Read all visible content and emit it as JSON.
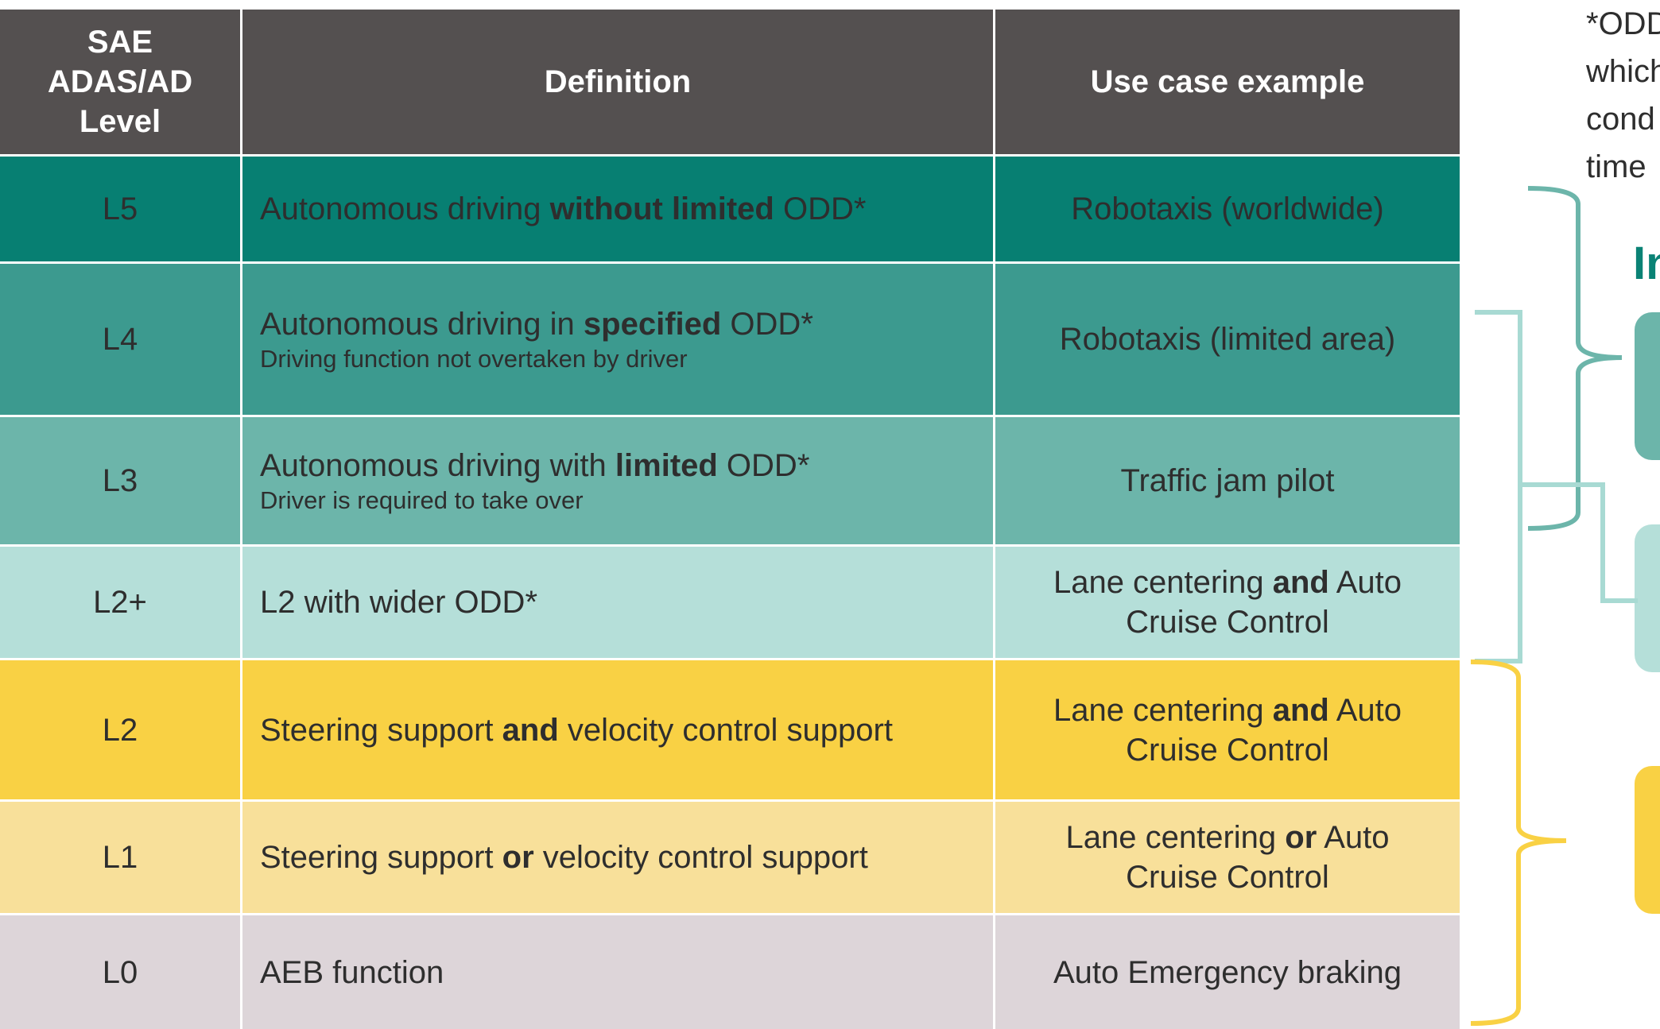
{
  "colors": {
    "header_bg": "#545050",
    "l5_bg": "#077f72",
    "l4_bg": "#3c9a8f",
    "l3_bg": "#6cb5aa",
    "l2plus_bg": "#b5dfd9",
    "l2_bg": "#f9d144",
    "l1_bg": "#f8e09a",
    "l0_bg": "#ddd5d9",
    "bracket_top": "#6cb5aa",
    "bracket_mid": "#a8dad3",
    "bracket_yellow": "#f9d144",
    "heading_accent": "#0a8275"
  },
  "header": {
    "level": [
      "SAE",
      "ADAS/AD",
      "Level"
    ],
    "definition": "Definition",
    "use_case": "Use case example"
  },
  "rows": [
    {
      "level": "L5",
      "def_parts": [
        "Autonomous driving ",
        "without limited",
        " ODD*"
      ],
      "def_sub": "",
      "use_parts": [
        "Robotaxis (worldwide)",
        "",
        ""
      ],
      "use_line2": ""
    },
    {
      "level": "L4",
      "def_parts": [
        "Autonomous driving in ",
        "specified",
        " ODD*"
      ],
      "def_sub": "Driving function not overtaken by driver",
      "use_parts": [
        "Robotaxis (limited area)",
        "",
        ""
      ],
      "use_line2": ""
    },
    {
      "level": "L3",
      "def_parts": [
        "Autonomous driving with ",
        "limited",
        " ODD*"
      ],
      "def_sub": "Driver is required to take over",
      "use_parts": [
        "Traffic jam pilot",
        "",
        ""
      ],
      "use_line2": ""
    },
    {
      "level": "L2+",
      "def_parts": [
        "L2 with wider ODD*",
        "",
        ""
      ],
      "def_sub": "",
      "use_parts": [
        "Lane centering ",
        "and",
        " Auto"
      ],
      "use_line2": "Cruise Control"
    },
    {
      "level": "L2",
      "def_parts": [
        "Steering support ",
        "and",
        " velocity control support"
      ],
      "def_sub": "",
      "use_parts": [
        "Lane centering ",
        "and",
        " Auto"
      ],
      "use_line2": "Cruise Control"
    },
    {
      "level": "L1",
      "def_parts": [
        "Steering support ",
        "or",
        " velocity control support"
      ],
      "def_sub": "",
      "use_parts": [
        "Lane centering ",
        "or",
        " Auto"
      ],
      "use_line2": "Cruise Control"
    },
    {
      "level": "L0",
      "def_parts": [
        "AEB function",
        "",
        ""
      ],
      "def_sub": "",
      "use_parts": [
        "Auto Emergency braking",
        "",
        ""
      ],
      "use_line2": ""
    }
  ],
  "side": {
    "note_lines": [
      "*ODD",
      "which",
      "cond",
      "time"
    ],
    "heading": "In"
  }
}
